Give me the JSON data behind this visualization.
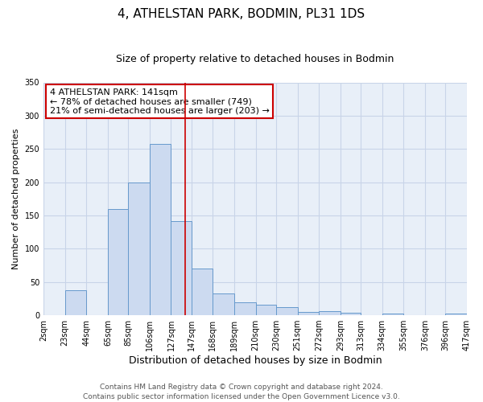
{
  "title": "4, ATHELSTAN PARK, BODMIN, PL31 1DS",
  "subtitle": "Size of property relative to detached houses in Bodmin",
  "xlabel": "Distribution of detached houses by size in Bodmin",
  "ylabel": "Number of detached properties",
  "bin_labels": [
    "2sqm",
    "23sqm",
    "44sqm",
    "65sqm",
    "85sqm",
    "106sqm",
    "127sqm",
    "147sqm",
    "168sqm",
    "189sqm",
    "210sqm",
    "230sqm",
    "251sqm",
    "272sqm",
    "293sqm",
    "313sqm",
    "334sqm",
    "355sqm",
    "376sqm",
    "396sqm",
    "417sqm"
  ],
  "bar_values": [
    0,
    38,
    0,
    160,
    200,
    258,
    142,
    70,
    33,
    20,
    16,
    12,
    5,
    6,
    4,
    0,
    2,
    0,
    0,
    2
  ],
  "bar_edges": [
    2,
    23,
    44,
    65,
    85,
    106,
    127,
    147,
    168,
    189,
    210,
    230,
    251,
    272,
    293,
    313,
    334,
    355,
    376,
    396,
    417
  ],
  "bar_color": "#ccdaf0",
  "bar_edge_color": "#6699cc",
  "vline_x": 141,
  "vline_color": "#cc0000",
  "annotation_line1": "4 ATHELSTAN PARK: 141sqm",
  "annotation_line2": "← 78% of detached houses are smaller (749)",
  "annotation_line3": "21% of semi-detached houses are larger (203) →",
  "annotation_box_color": "#cc0000",
  "annotation_box_bg": "#ffffff",
  "ylim": [
    0,
    350
  ],
  "yticks": [
    0,
    50,
    100,
    150,
    200,
    250,
    300,
    350
  ],
  "grid_color": "#c8d4e8",
  "bg_color": "#e8eff8",
  "footer_line1": "Contains HM Land Registry data © Crown copyright and database right 2024.",
  "footer_line2": "Contains public sector information licensed under the Open Government Licence v3.0.",
  "title_fontsize": 11,
  "subtitle_fontsize": 9,
  "xlabel_fontsize": 9,
  "ylabel_fontsize": 8,
  "tick_fontsize": 7,
  "annot_fontsize": 8,
  "footer_fontsize": 6.5
}
